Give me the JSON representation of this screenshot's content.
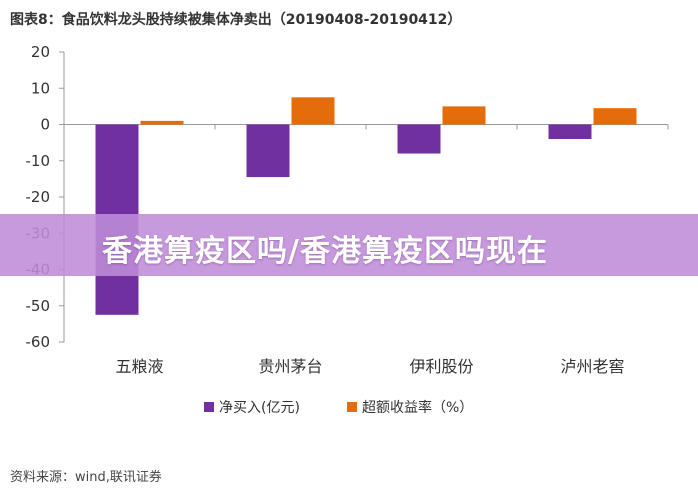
{
  "header": {
    "title": "图表8：食品饮料龙头股持续被集体净卖出（20190408-20190412）"
  },
  "overlay": {
    "text": "香港算疫区吗/香港算疫区吗现在"
  },
  "footer": {
    "source": "资料来源：wind,联讯证券"
  },
  "colors": {
    "series1": "#7030A0",
    "series2": "#E46C0A",
    "banner": "#BE8CD7"
  },
  "chart_data": {
    "type": "bar",
    "title": "图表8：食品饮料龙头股持续被集体净卖出（20190408-20190412）",
    "categories": [
      "五粮液",
      "贵州茅台",
      "伊利股份",
      "泸州老窖"
    ],
    "series": [
      {
        "name": "净买入(亿元)",
        "values": [
          -52.5,
          -14.5,
          -8,
          -4
        ]
      },
      {
        "name": "超额收益率（%）",
        "values": [
          1,
          7.5,
          5,
          4.5
        ]
      }
    ],
    "ylim": [
      -60,
      20
    ],
    "yticks": [
      20,
      10,
      0,
      -10,
      -20,
      -30,
      -40,
      -50,
      -60
    ],
    "xlabel": "",
    "ylabel": "",
    "grid": false,
    "legend": "bottom"
  }
}
